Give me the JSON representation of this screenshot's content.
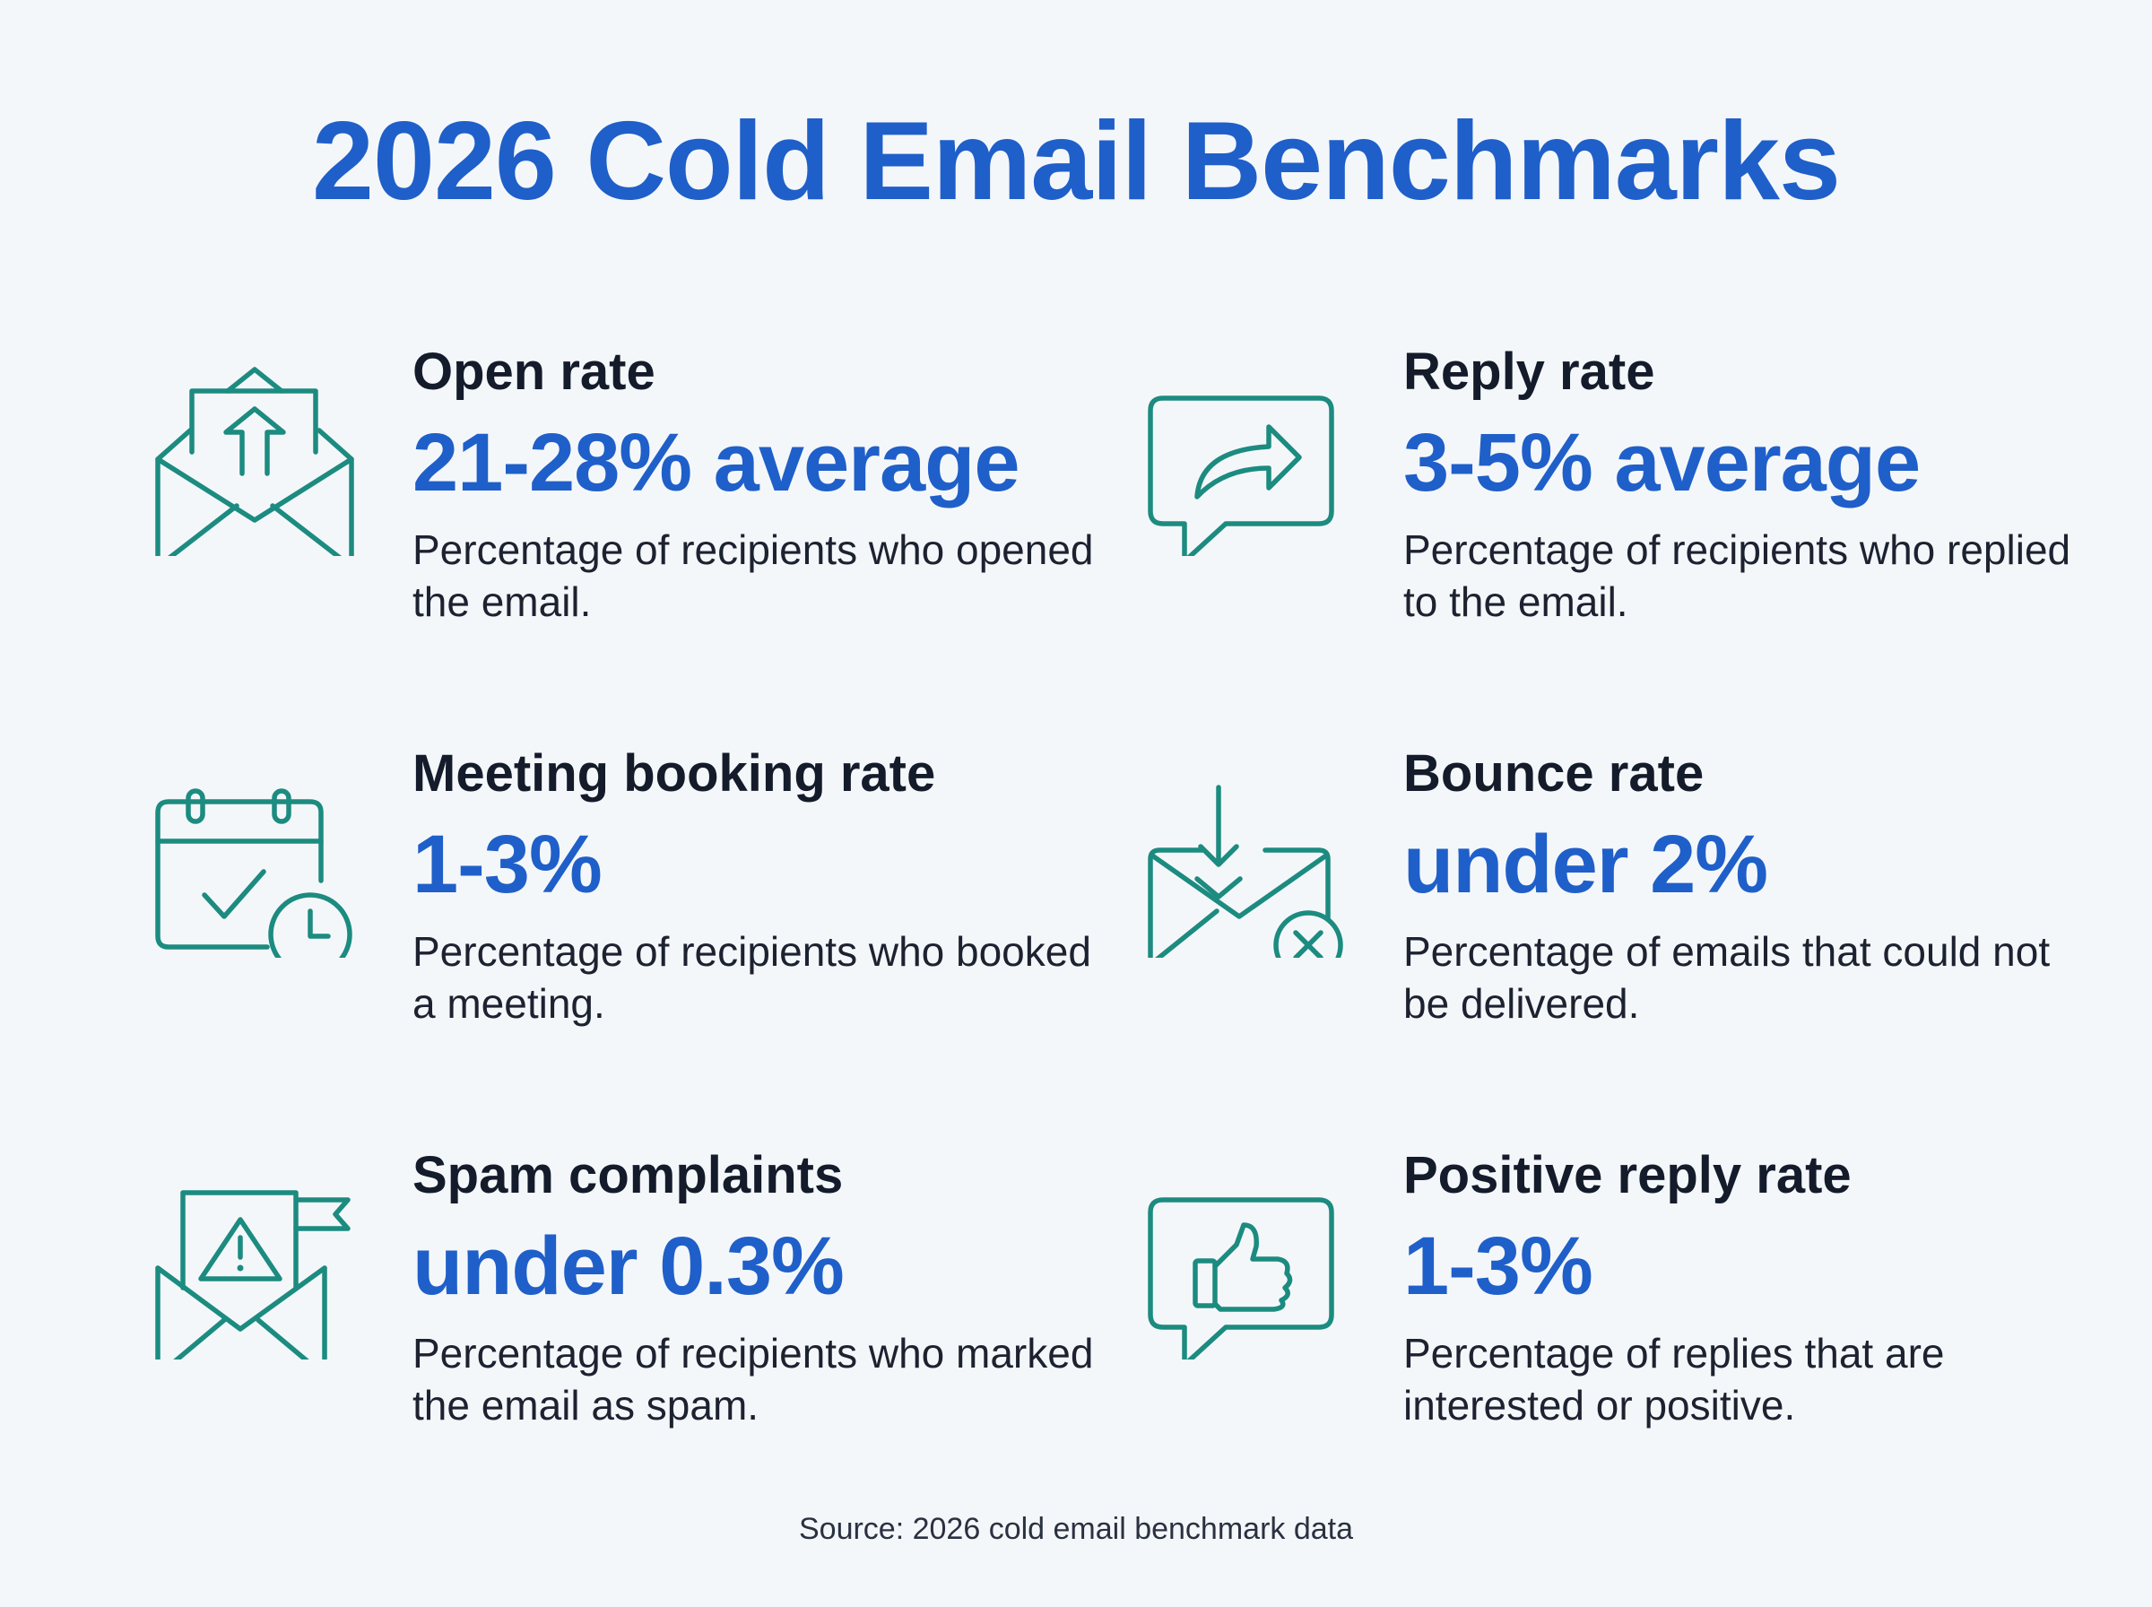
{
  "title": "2026 Cold Email Benchmarks",
  "metrics": [
    {
      "label": "Open rate",
      "value": "21-28% average",
      "desc": "Percentage of recipients who opened the email.",
      "icon": "envelope-open-upload-icon"
    },
    {
      "label": "Reply rate",
      "value": "3-5% average",
      "desc": "Percentage of recipients who replied to the email.",
      "icon": "reply-speech-bubble-icon"
    },
    {
      "label": "Meeting booking rate",
      "value": "1-3%",
      "desc": "Percentage of recipients who booked a meeting.",
      "icon": "calendar-check-clock-icon"
    },
    {
      "label": "Bounce rate",
      "value": "under 2%",
      "desc": "Percentage of emails that could not be delivered.",
      "icon": "envelope-bounce-x-icon"
    },
    {
      "label": "Spam complaints",
      "value": "under 0.3%",
      "desc": "Percentage of recipients who marked the email as spam.",
      "icon": "envelope-warning-flag-icon"
    },
    {
      "label": "Positive reply rate",
      "value": "1-3%",
      "desc": "Percentage of replies that are interested or positive.",
      "icon": "thumbs-up-speech-bubble-icon"
    }
  ],
  "source": "Source: 2026 cold email benchmark data",
  "colors": {
    "accent": "#1f5fc9",
    "icon": "#1c8b80",
    "background": "#f4f7fa"
  }
}
